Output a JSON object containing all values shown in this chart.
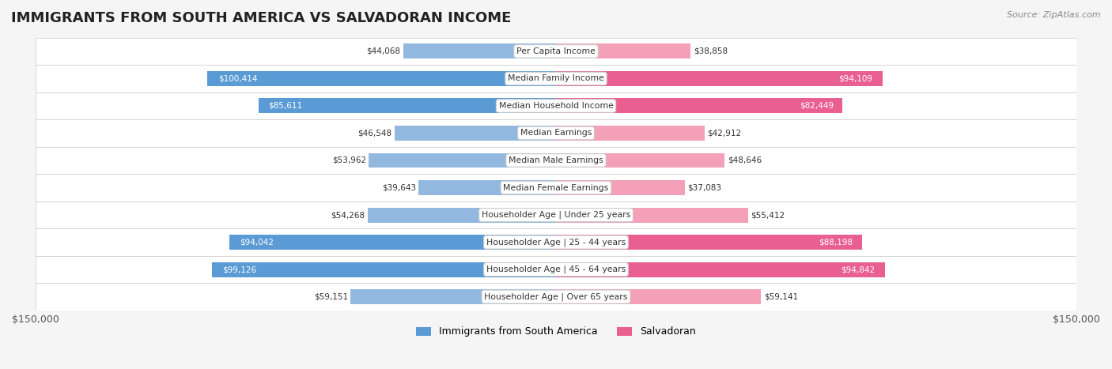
{
  "title": "IMMIGRANTS FROM SOUTH AMERICA VS SALVADORAN INCOME",
  "source": "Source: ZipAtlas.com",
  "categories": [
    "Per Capita Income",
    "Median Family Income",
    "Median Household Income",
    "Median Earnings",
    "Median Male Earnings",
    "Median Female Earnings",
    "Householder Age | Under 25 years",
    "Householder Age | 25 - 44 years",
    "Householder Age | 45 - 64 years",
    "Householder Age | Over 65 years"
  ],
  "left_values": [
    44068,
    100414,
    85611,
    46548,
    53962,
    39643,
    54268,
    94042,
    99126,
    59151
  ],
  "right_values": [
    38858,
    94109,
    82449,
    42912,
    48646,
    37083,
    55412,
    88198,
    94842,
    59141
  ],
  "left_labels": [
    "$44,068",
    "$100,414",
    "$85,611",
    "$46,548",
    "$53,962",
    "$39,643",
    "$54,268",
    "$94,042",
    "$99,126",
    "$59,151"
  ],
  "right_labels": [
    "$38,858",
    "$94,109",
    "$82,449",
    "$42,912",
    "$48,646",
    "$37,083",
    "$55,412",
    "$88,198",
    "$94,842",
    "$59,141"
  ],
  "left_color": "#93b8e0",
  "left_color_strong": "#5b9bd5",
  "right_color": "#f4a0b8",
  "right_color_strong": "#e96090",
  "max_value": 150000,
  "xlabel_left": "$150,000",
  "xlabel_right": "$150,000",
  "legend_left": "Immigrants from South America",
  "legend_right": "Salvadoran",
  "bg_color": "#f5f5f5",
  "row_bg_color": "#ffffff",
  "row_alt_bg_color": "#f0f0f0",
  "strong_threshold": 70000
}
